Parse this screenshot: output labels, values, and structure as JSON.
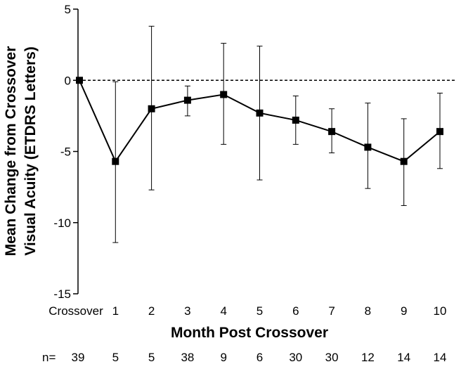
{
  "chart_data": {
    "type": "line",
    "title": "",
    "xlabel": "Month Post Crossover",
    "ylabel_lines": [
      "Mean Change from Crossover",
      "Visual Acuity (ETDRS Letters)"
    ],
    "ylim": [
      -15,
      5
    ],
    "yticks": [
      "5",
      "0",
      "-5",
      "-10",
      "-15"
    ],
    "yticks_values": [
      5,
      0,
      -5,
      -10,
      -15
    ],
    "categories": [
      "Crossover",
      "1",
      "2",
      "3",
      "4",
      "5",
      "6",
      "7",
      "8",
      "9",
      "10"
    ],
    "values": [
      0,
      -5.7,
      -2.0,
      -1.4,
      -1.0,
      -2.3,
      -2.8,
      -3.6,
      -4.7,
      -5.7,
      -3.6
    ],
    "err_upper": [
      0,
      -0.1,
      3.8,
      -0.4,
      2.6,
      2.4,
      -1.1,
      -2.0,
      -1.6,
      -2.7,
      -0.9
    ],
    "err_lower": [
      0,
      -11.4,
      -7.7,
      -2.5,
      -4.5,
      -7.0,
      -4.5,
      -5.1,
      -7.6,
      -8.8,
      -6.2
    ],
    "reference_line": 0,
    "n_prefix": "n=",
    "n_values": [
      "39",
      "5",
      "5",
      "38",
      "9",
      "6",
      "30",
      "30",
      "12",
      "14",
      "14"
    ],
    "colors": {
      "line": "#000000",
      "marker": "#000000"
    }
  }
}
